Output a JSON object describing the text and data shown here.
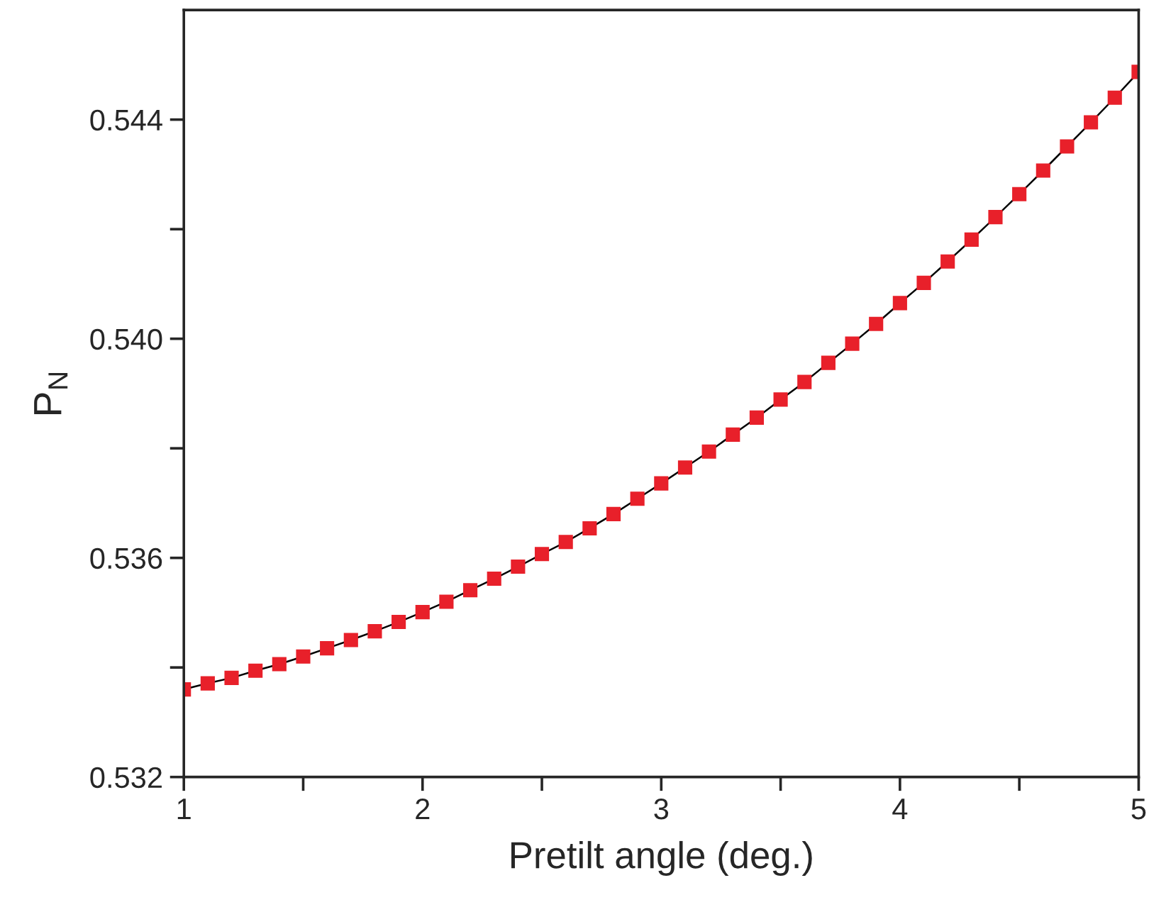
{
  "chart_data": {
    "type": "line",
    "xlabel": "Pretilt angle (deg.)",
    "ylabel": "P$_{N}$",
    "x": [
      1.0,
      1.1,
      1.2,
      1.3,
      1.4,
      1.5,
      1.6,
      1.7,
      1.8,
      1.9,
      2.0,
      2.1,
      2.2,
      2.3,
      2.4,
      2.5,
      2.6,
      2.7,
      2.8,
      2.9,
      3.0,
      3.1,
      3.2,
      3.3,
      3.4,
      3.5,
      3.6,
      3.7,
      3.8,
      3.9,
      4.0,
      4.1,
      4.2,
      4.3,
      4.4,
      4.5,
      4.6,
      4.7,
      4.8,
      4.9,
      5.0
    ],
    "series": [
      {
        "color": "#e8202a",
        "values": [
          0.5336,
          0.53371,
          0.53381,
          0.53394,
          0.53406,
          0.5342,
          0.53435,
          0.5345,
          0.53466,
          0.53483,
          0.53501,
          0.5352,
          0.53541,
          0.53562,
          0.53584,
          0.53607,
          0.53629,
          0.53654,
          0.5368,
          0.53708,
          0.53736,
          0.53765,
          0.53794,
          0.53825,
          0.53856,
          0.53889,
          0.53921,
          0.53956,
          0.53991,
          0.54027,
          0.54065,
          0.54102,
          0.54141,
          0.54181,
          0.54222,
          0.54264,
          0.54307,
          0.54351,
          0.54395,
          0.5444,
          0.54487
        ]
      }
    ],
    "marker": "square",
    "line_style": "solid",
    "grid": false,
    "legend": false,
    "xlim": [
      1,
      5
    ],
    "ylim": [
      0.532,
      0.546
    ],
    "xticks": [
      1,
      {
        "value": 1.5,
        "label": null
      },
      2,
      {
        "value": 2.5,
        "label": null
      },
      3,
      {
        "value": 3.5,
        "label": null
      },
      4,
      {
        "value": 4.5,
        "label": null
      },
      5
    ],
    "yticks": [
      0.532,
      {
        "value": 0.534,
        "label": null
      },
      0.536,
      {
        "value": 0.538,
        "label": null
      },
      {
        "value": 0.54,
        "label": "0.540"
      },
      {
        "value": 0.542,
        "label": null
      },
      0.544
    ]
  }
}
